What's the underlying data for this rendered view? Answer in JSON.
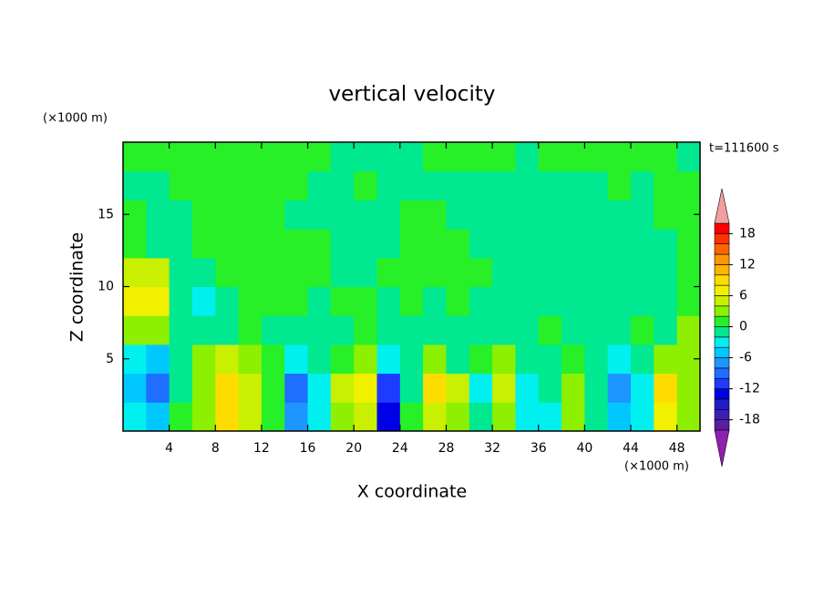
{
  "chart_data": {
    "type": "contour",
    "title": "vertical velocity",
    "y_unit": "(×1000 m)",
    "x_unit": "(×1000 m)",
    "time_label": "t=111600 s",
    "xlabel": "X coordinate",
    "ylabel": "Z coordinate",
    "xlim": [
      0,
      50
    ],
    "ylim": [
      0,
      20
    ],
    "xticks": [
      4,
      8,
      12,
      16,
      20,
      24,
      28,
      32,
      36,
      40,
      44,
      48
    ],
    "yticks": [
      5,
      10,
      15
    ],
    "x": [
      1,
      3,
      5,
      7,
      9,
      11,
      13,
      15,
      17,
      19,
      21,
      23,
      25,
      27,
      29,
      31,
      33,
      35,
      37,
      39,
      41,
      43,
      45,
      47,
      49
    ],
    "z": [
      1,
      3,
      5,
      7,
      9,
      11,
      13,
      15,
      17,
      19
    ],
    "values": [
      [
        -3,
        -5,
        0,
        2,
        8,
        4,
        1,
        -8,
        -3,
        3,
        5,
        -14,
        0,
        5,
        3,
        -2,
        3,
        -4,
        -3,
        2,
        -1,
        -5,
        -3,
        6,
        2
      ],
      [
        -5,
        -10,
        -2,
        3,
        9,
        5,
        1,
        -9,
        -4,
        4,
        6,
        -12,
        -1,
        8,
        5,
        -3,
        5,
        -4,
        -2,
        3,
        -1,
        -7,
        -4,
        8,
        3
      ],
      [
        -4,
        -6,
        -2,
        2,
        4,
        3,
        0,
        -3,
        -2,
        1,
        2,
        -3,
        -1,
        3,
        -1,
        1,
        2,
        -1,
        -2,
        0,
        -1,
        -3,
        -2,
        2,
        3
      ],
      [
        2,
        3,
        -1,
        -2,
        -1,
        0,
        -1,
        -2,
        -1,
        -1,
        0,
        -1,
        -1,
        -1,
        -1,
        -1,
        -1,
        -1,
        0,
        -1,
        -1,
        -1,
        0,
        -2,
        2
      ],
      [
        6,
        7,
        -2,
        -3,
        -1,
        0,
        1,
        0,
        -1,
        0,
        1,
        -1,
        1,
        -1,
        1,
        -1,
        -1,
        -1,
        -1,
        -1,
        -1,
        -1,
        -1,
        -2,
        1
      ],
      [
        5,
        4,
        -1,
        -1,
        0,
        1,
        1,
        0,
        1,
        -1,
        -1,
        1,
        1,
        1,
        1,
        0,
        -1,
        -1,
        -1,
        -1,
        -1,
        -1,
        -1,
        -1,
        1
      ],
      [
        1,
        -1,
        -1,
        1,
        1,
        1,
        1,
        1,
        1,
        -1,
        -1,
        -1,
        1,
        1,
        1,
        -1,
        -1,
        -1,
        -1,
        -1,
        -1,
        -1,
        -1,
        -1,
        1
      ],
      [
        1,
        -1,
        -1,
        1,
        1,
        1,
        1,
        -1,
        -1,
        -1,
        -1,
        -1,
        1,
        1,
        -1,
        -1,
        -1,
        -1,
        -1,
        -1,
        -1,
        -1,
        -1,
        1,
        1
      ],
      [
        -1,
        -1,
        1,
        1,
        1,
        1,
        1,
        1,
        -1,
        -1,
        1,
        -1,
        -1,
        -1,
        -1,
        -1,
        -1,
        -1,
        -1,
        -1,
        -1,
        1,
        -1,
        1,
        1
      ],
      [
        1,
        1,
        1,
        1,
        1,
        1,
        1,
        1,
        1,
        -1,
        -1,
        -1,
        -1,
        1,
        1,
        1,
        1,
        -1,
        1,
        1,
        1,
        1,
        1,
        1,
        -1
      ]
    ],
    "levels": [
      -20,
      -18,
      -16,
      -14,
      -12,
      -10,
      -8,
      -6,
      -4,
      -2,
      0,
      2,
      4,
      6,
      8,
      10,
      12,
      14,
      16,
      18,
      20
    ],
    "colors": [
      "#9020b0",
      "#5a1ea0",
      "#3c1eb4",
      "#1e1ec8",
      "#0000e6",
      "#1e3cff",
      "#1e6eff",
      "#1e96ff",
      "#00c8ff",
      "#00f0f0",
      "#00e890",
      "#28f028",
      "#8cf000",
      "#c8f000",
      "#f0f000",
      "#ffdc00",
      "#ffb400",
      "#ff9600",
      "#ff6400",
      "#ff3200",
      "#ff0000",
      "#f0a0a0"
    ],
    "colorbar_ticks": [
      -18,
      -12,
      -6,
      0,
      6,
      12,
      18
    ]
  }
}
